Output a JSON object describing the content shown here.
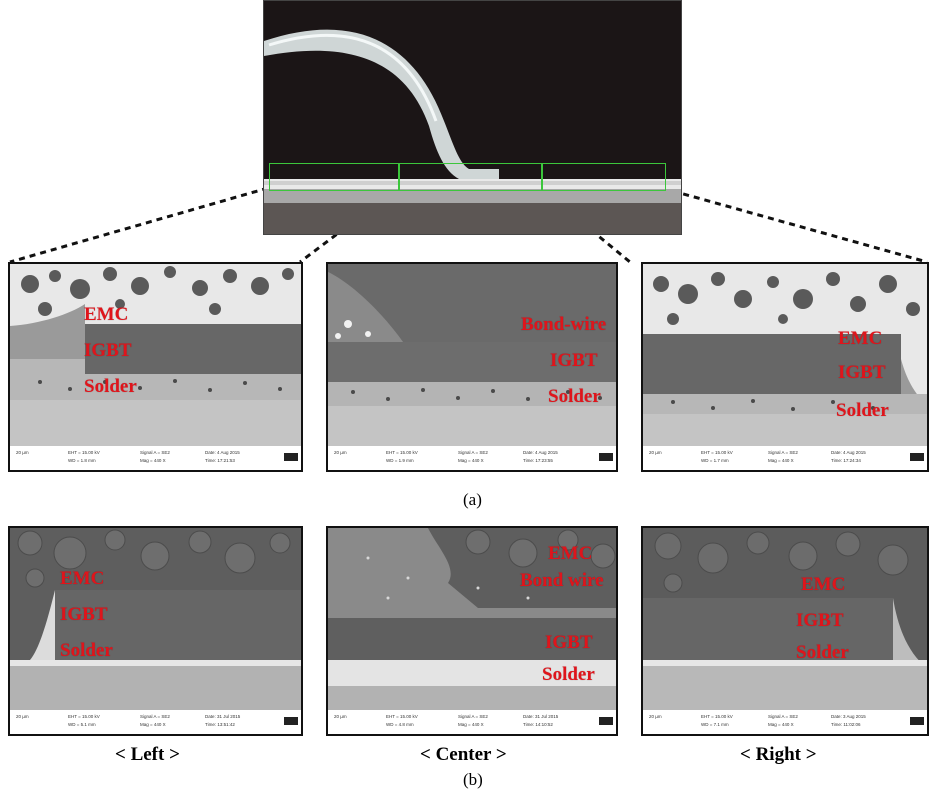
{
  "figure": {
    "top_image": {
      "zoom_boxes": [
        "left",
        "center",
        "right"
      ]
    },
    "caption_a": "(a)",
    "caption_b": "(b)",
    "columns": [
      {
        "caption": "< Left >"
      },
      {
        "caption": "< Center >"
      },
      {
        "caption": "< Right >"
      }
    ],
    "row_a": [
      {
        "labels": [
          "EMC",
          "IGBT",
          "Solder"
        ],
        "info": {
          "scale": "20 µm",
          "eht": "EHT = 15.00 kV",
          "wd": "WD = 1.8 mm",
          "signal": "Signal A = SE2",
          "mag": "Mag =  440 X",
          "date": "Date: 4 Aug 2015",
          "time": "Time: 17:21:53"
        }
      },
      {
        "labels": [
          "Bond-wire",
          "IGBT",
          "Solder"
        ],
        "info": {
          "scale": "20 µm",
          "eht": "EHT = 15.00 kV",
          "wd": "WD = 1.9 mm",
          "signal": "Signal A = SE2",
          "mag": "Mag =  440 X",
          "date": "Date: 4 Aug 2015",
          "time": "Time: 17:23:55"
        }
      },
      {
        "labels": [
          "EMC",
          "IGBT",
          "Solder"
        ],
        "info": {
          "scale": "20 µm",
          "eht": "EHT = 15.00 kV",
          "wd": "WD = 1.7 mm",
          "signal": "Signal A = SE2",
          "mag": "Mag =  440 X",
          "date": "Date: 4 Aug 2015",
          "time": "Time: 17:24:34"
        }
      }
    ],
    "row_b": [
      {
        "labels": [
          "EMC",
          "IGBT",
          "Solder"
        ],
        "info": {
          "scale": "20 µm",
          "eht": "EHT = 15.00 kV",
          "wd": "WD = 5.1 mm",
          "signal": "Signal A = SE2",
          "mag": "Mag =  440 X",
          "date": "Date: 31 Jul 2015",
          "time": "Time: 13:51:42"
        }
      },
      {
        "labels": [
          "EMC",
          "Bond wire",
          "IGBT",
          "Solder"
        ],
        "info": {
          "scale": "20 µm",
          "eht": "EHT = 15.00 kV",
          "wd": "WD = 4.8 mm",
          "signal": "Signal A = SE2",
          "mag": "Mag =  440 X",
          "date": "Date: 31 Jul 2015",
          "time": "Time: 14:10:52"
        }
      },
      {
        "labels": [
          "EMC",
          "IGBT",
          "Solder"
        ],
        "info": {
          "scale": "20 µm",
          "eht": "EHT = 15.00 kV",
          "wd": "WD = 7.1 mm",
          "signal": "Signal A = SE2",
          "mag": "Mag =  440 X",
          "date": "Date: 3 Aug 2015",
          "time": "Time: 11:02:06"
        }
      }
    ]
  }
}
